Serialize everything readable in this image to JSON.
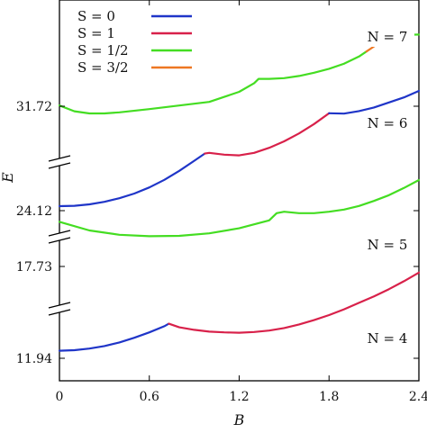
{
  "chart_data": {
    "type": "line",
    "xlabel": "B",
    "ylabel": "E",
    "xlim": [
      0,
      2.4
    ],
    "x_ticks": [
      "0",
      "0.6",
      "1.2",
      "1.8",
      "2.4"
    ],
    "y_ticks": [
      "11.94",
      "17.73",
      "24.12",
      "31.72"
    ],
    "legend": [
      {
        "label": "S = 0",
        "color": "#1f35c8"
      },
      {
        "label": "S = 1",
        "color": "#d8214a"
      },
      {
        "label": "S = 1/2",
        "color": "#44dd22"
      },
      {
        "label": "S = 3/2",
        "color": "#ee7722"
      }
    ],
    "legend_position": "top-left",
    "panels": [
      {
        "label": "N = 4",
        "baseline": "11.94",
        "ylim": [
          0,
          100
        ],
        "segments": [
          {
            "spin": "S = 0",
            "color": "#1f35c8",
            "x": [
              0,
              0.1,
              0.2,
              0.3,
              0.4,
              0.5,
              0.6,
              0.7,
              0.73
            ],
            "y": [
              10.5,
              11.2,
              13.5,
              17.0,
              22.0,
              28.5,
              36.0,
              44.5,
              48.0
            ]
          },
          {
            "spin": "S = 1",
            "color": "#d8214a",
            "x": [
              0.73,
              0.8,
              0.9,
              1.0,
              1.1,
              1.2,
              1.3,
              1.4,
              1.5,
              1.6,
              1.7,
              1.8,
              1.9,
              2.0,
              2.1,
              2.2,
              2.3,
              2.4
            ],
            "y": [
              48.0,
              43.0,
              39.5,
              37.0,
              36.0,
              35.5,
              36.5,
              38.5,
              42.0,
              47.0,
              53.0,
              60.0,
              68.0,
              77.0,
              86.0,
              96.0,
              107.0,
              119.0
            ]
          }
        ],
        "label_position": "right"
      },
      {
        "label": "N = 5",
        "baseline": "17.73",
        "ylim": [
          0,
          100
        ],
        "segments": [
          {
            "spin": "S = 1/2",
            "color": "#44dd22",
            "x": [
              0,
              0.2,
              0.4,
              0.6,
              0.8,
              1.0,
              1.2,
              1.4,
              1.45,
              1.5,
              1.6,
              1.7,
              1.8,
              1.9,
              2.0,
              2.1,
              2.2,
              2.3,
              2.4
            ],
            "y": [
              62,
              50,
              44,
              42,
              42.5,
              46,
              53,
              64,
              74,
              76,
              74,
              74,
              76,
              79,
              84,
              91,
              99,
              109,
              120
            ]
          }
        ],
        "label_position": "right"
      },
      {
        "label": "N = 6",
        "baseline": "24.12",
        "ylim": [
          0,
          100
        ],
        "segments": [
          {
            "spin": "S = 0",
            "color": "#1f35c8",
            "x": [
              0,
              0.1,
              0.2,
              0.3,
              0.4,
              0.5,
              0.6,
              0.7,
              0.8,
              0.9,
              0.97
            ],
            "y": [
              5.0,
              5.5,
              7.5,
              11.0,
              16.0,
              22.5,
              31.0,
              41.5,
              54.0,
              68.0,
              78.0
            ]
          },
          {
            "spin": "S = 1",
            "color": "#d8214a",
            "x": [
              0.97,
              1.0,
              1.1,
              1.2,
              1.3,
              1.4,
              1.5,
              1.6,
              1.7,
              1.8
            ],
            "y": [
              78.0,
              79.0,
              76.5,
              75.5,
              79.0,
              86.0,
              95.0,
              106.0,
              119.0,
              134.0
            ]
          },
          {
            "spin": "S = 0",
            "color": "#1f35c8",
            "x": [
              1.8,
              1.9,
              2.0,
              2.1,
              2.2,
              2.3,
              2.4
            ],
            "y": [
              134.0,
              133.5,
              137.0,
              142.0,
              149.0,
              156.0,
              165.0
            ]
          }
        ],
        "label_position": "right"
      },
      {
        "label": "N = 7",
        "baseline": "31.72",
        "ylim": [
          0,
          100
        ],
        "segments": [
          {
            "spin": "S = 1/2",
            "color": "#44dd22",
            "x": [
              0,
              0.1,
              0.2,
              0.3,
              0.4,
              0.6,
              0.8,
              1.0,
              1.2,
              1.3,
              1.33,
              1.4,
              1.5,
              1.6,
              1.7,
              1.8,
              1.9,
              2.0,
              2.05
            ],
            "y": [
              1.0,
              -7.0,
              -10.0,
              -10.0,
              -8.5,
              -4.0,
              1.0,
              6.0,
              20.0,
              32.0,
              38.0,
              38.0,
              39.0,
              42.0,
              46.5,
              52.0,
              59.0,
              69.0,
              76.0
            ]
          },
          {
            "spin": "S = 3/2",
            "color": "#ee7722",
            "x": [
              2.05,
              2.1,
              2.15,
              2.2
            ],
            "y": [
              76.0,
              83.0,
              89.0,
              94.0
            ]
          },
          {
            "spin": "S = 1/2",
            "color": "#44dd22",
            "x": [
              2.2,
              2.25,
              2.3,
              2.4
            ],
            "y": [
              94.0,
              97.5,
              99.0,
              99.5
            ]
          }
        ],
        "label_position": "right"
      }
    ]
  }
}
